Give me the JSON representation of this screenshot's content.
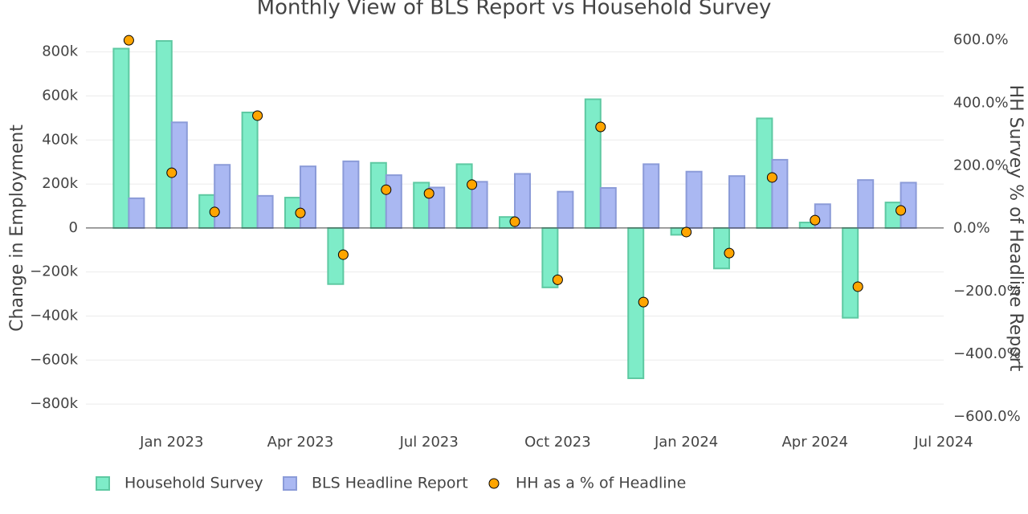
{
  "chart_data": {
    "type": "bar",
    "title": "Monthly View of BLS Report vs Household Survey",
    "y_label": "Change in Employment",
    "y2_label": "HH Survey % of Headline Report",
    "x": [
      "2022-12",
      "2023-01",
      "2023-02",
      "2023-03",
      "2023-04",
      "2023-05",
      "2023-06",
      "2023-07",
      "2023-08",
      "2023-09",
      "2023-10",
      "2023-11",
      "2023-12",
      "2024-01",
      "2024-02",
      "2024-03",
      "2024-04",
      "2024-05",
      "2024-06"
    ],
    "xlim": [
      "2022-11",
      "2024-07"
    ],
    "xticks": [
      {
        "value": "2023-01",
        "label": "Jan 2023"
      },
      {
        "value": "2023-04",
        "label": "Apr 2023"
      },
      {
        "value": "2023-07",
        "label": "Jul 2023"
      },
      {
        "value": "2023-10",
        "label": "Oct 2023"
      },
      {
        "value": "2024-01",
        "label": "Jan 2024"
      },
      {
        "value": "2024-04",
        "label": "Apr 2024"
      },
      {
        "value": "2024-07",
        "label": "Jul 2024"
      }
    ],
    "ylim": [
      -880000,
      890000
    ],
    "yticks": [
      {
        "value": -800000,
        "label": "−800k"
      },
      {
        "value": -600000,
        "label": "−600k"
      },
      {
        "value": -400000,
        "label": "−400k"
      },
      {
        "value": -200000,
        "label": "−200k"
      },
      0,
      {
        "value": 200000,
        "label": "200k"
      },
      {
        "value": 400000,
        "label": "400k"
      },
      {
        "value": 600000,
        "label": "600k"
      },
      {
        "value": 800000,
        "label": "800k"
      }
    ],
    "y2lim": [
      -615,
      626
    ],
    "y2ticks": [
      {
        "value": -600,
        "label": "−600.0%"
      },
      {
        "value": -400,
        "label": "−400.0%"
      },
      {
        "value": -200,
        "label": "−200.0%"
      },
      {
        "value": 0,
        "label": "0.0%"
      },
      {
        "value": 200,
        "label": "200.0%"
      },
      {
        "value": 400,
        "label": "400.0%"
      },
      {
        "value": 600,
        "label": "600.0%"
      }
    ],
    "grid": true,
    "legend": "bottom",
    "series": [
      {
        "name": "Household Survey",
        "type": "bar",
        "color": "#7eecc8",
        "stroke": "#5ec9a2",
        "values": [
          815000,
          850000,
          150000,
          525000,
          138000,
          -255000,
          296000,
          206000,
          290000,
          50000,
          -270000,
          585000,
          -683000,
          -31000,
          -184000,
          498000,
          25000,
          -408000,
          116000
        ]
      },
      {
        "name": "BLS Headline Report",
        "type": "bar",
        "color": "#aab8f2",
        "stroke": "#8b9bd8",
        "values": [
          135000,
          480000,
          287000,
          146000,
          280000,
          303000,
          240000,
          184000,
          210000,
          246000,
          165000,
          182000,
          290000,
          256000,
          236000,
          310000,
          108000,
          218000,
          206000
        ]
      },
      {
        "name": "HH as a % of Headline",
        "type": "scatter",
        "axis": "y2",
        "color": "#ffa500",
        "values": [
          600,
          178,
          53,
          360,
          50,
          -83,
          124,
          112,
          140,
          22,
          -163,
          324,
          -234,
          -11,
          -78,
          163,
          27,
          -185,
          58
        ]
      }
    ]
  }
}
